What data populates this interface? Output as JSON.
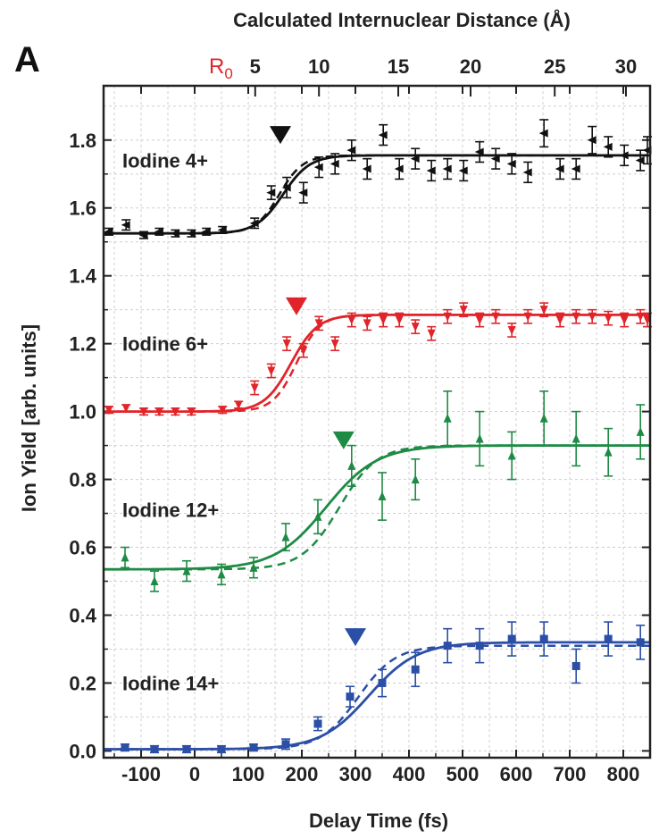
{
  "chart_data": {
    "type": "scatter",
    "panel_label": "A",
    "title": "",
    "xlabel": "Delay Time (fs)",
    "ylabel": "Ion Yield [arb. units]",
    "top_xlabel": "Calculated Internuclear Distance (Å)",
    "top_r0_label": "R",
    "top_r0_sub": "0",
    "xlim": [
      -170,
      850
    ],
    "ylim": [
      -0.02,
      1.96
    ],
    "x_ticks": [
      -100,
      0,
      100,
      200,
      300,
      400,
      500,
      600,
      700,
      800
    ],
    "x_tick_labels": [
      "-100",
      "0",
      "100",
      "200",
      "300",
      "400",
      "500",
      "600",
      "700",
      "800"
    ],
    "y_ticks": [
      0.0,
      0.2,
      0.4,
      0.6,
      0.8,
      1.0,
      1.2,
      1.4,
      1.6,
      1.8
    ],
    "y_tick_labels": [
      "0.0",
      "0.2",
      "0.4",
      "0.6",
      "0.8",
      "1.0",
      "1.2",
      "1.4",
      "1.6",
      "1.8"
    ],
    "top_ticks": [
      {
        "label": "5",
        "x": 113
      },
      {
        "label": "10",
        "x": 232
      },
      {
        "label": "15",
        "x": 380
      },
      {
        "label": "20",
        "x": 515
      },
      {
        "label": "25",
        "x": 672
      },
      {
        "label": "30",
        "x": 805
      }
    ],
    "grid": true,
    "series": [
      {
        "name": "Iodine 4+",
        "color": "#111111",
        "marker": "triangle-left",
        "fit": {
          "low": 1.525,
          "high": 1.755,
          "t0": 165,
          "w": 25
        },
        "fit_dashed": {
          "low": 1.525,
          "high": 1.755,
          "t0": 158,
          "w": 22
        },
        "arrow_x": 160,
        "arrow_y": 1.815,
        "label_x": -135,
        "label_y": 1.74,
        "points": [
          {
            "x": -160,
            "y": 1.53,
            "e": 0.01
          },
          {
            "x": -128,
            "y": 1.55,
            "e": 0.015
          },
          {
            "x": -95,
            "y": 1.52,
            "e": 0.01
          },
          {
            "x": -66,
            "y": 1.53,
            "e": 0.01
          },
          {
            "x": -36,
            "y": 1.525,
            "e": 0.01
          },
          {
            "x": -6,
            "y": 1.525,
            "e": 0.01
          },
          {
            "x": 22,
            "y": 1.53,
            "e": 0.01
          },
          {
            "x": 52,
            "y": 1.535,
            "e": 0.01
          },
          {
            "x": 112,
            "y": 1.555,
            "e": 0.015
          },
          {
            "x": 143,
            "y": 1.645,
            "e": 0.02
          },
          {
            "x": 172,
            "y": 1.66,
            "e": 0.03
          },
          {
            "x": 203,
            "y": 1.645,
            "e": 0.03
          },
          {
            "x": 232,
            "y": 1.72,
            "e": 0.03
          },
          {
            "x": 262,
            "y": 1.73,
            "e": 0.03
          },
          {
            "x": 293,
            "y": 1.77,
            "e": 0.03
          },
          {
            "x": 322,
            "y": 1.715,
            "e": 0.03
          },
          {
            "x": 352,
            "y": 1.815,
            "e": 0.03
          },
          {
            "x": 382,
            "y": 1.715,
            "e": 0.03
          },
          {
            "x": 412,
            "y": 1.745,
            "e": 0.03
          },
          {
            "x": 442,
            "y": 1.71,
            "e": 0.03
          },
          {
            "x": 472,
            "y": 1.715,
            "e": 0.03
          },
          {
            "x": 502,
            "y": 1.71,
            "e": 0.03
          },
          {
            "x": 532,
            "y": 1.765,
            "e": 0.03
          },
          {
            "x": 562,
            "y": 1.745,
            "e": 0.03
          },
          {
            "x": 592,
            "y": 1.73,
            "e": 0.03
          },
          {
            "x": 622,
            "y": 1.705,
            "e": 0.03
          },
          {
            "x": 652,
            "y": 1.82,
            "e": 0.04
          },
          {
            "x": 682,
            "y": 1.715,
            "e": 0.03
          },
          {
            "x": 712,
            "y": 1.715,
            "e": 0.03
          },
          {
            "x": 742,
            "y": 1.8,
            "e": 0.04
          },
          {
            "x": 772,
            "y": 1.78,
            "e": 0.03
          },
          {
            "x": 802,
            "y": 1.755,
            "e": 0.03
          },
          {
            "x": 832,
            "y": 1.74,
            "e": 0.03
          },
          {
            "x": 845,
            "y": 1.77,
            "e": 0.04
          }
        ]
      },
      {
        "name": "Iodine 6+",
        "color": "#e0242a",
        "marker": "triangle-down",
        "fit": {
          "low": 1.0,
          "high": 1.285,
          "t0": 180,
          "w": 25
        },
        "fit_dashed": {
          "low": 1.0,
          "high": 1.285,
          "t0": 190,
          "w": 22
        },
        "arrow_x": 190,
        "arrow_y": 1.31,
        "label_x": -135,
        "label_y": 1.2,
        "points": [
          {
            "x": -160,
            "y": 1.005,
            "e": 0.01
          },
          {
            "x": -128,
            "y": 1.01,
            "e": 0.01
          },
          {
            "x": -95,
            "y": 1.0,
            "e": 0.01
          },
          {
            "x": -66,
            "y": 1.0,
            "e": 0.01
          },
          {
            "x": -36,
            "y": 1.0,
            "e": 0.01
          },
          {
            "x": -6,
            "y": 1.0,
            "e": 0.01
          },
          {
            "x": 52,
            "y": 1.005,
            "e": 0.01
          },
          {
            "x": 82,
            "y": 1.02,
            "e": 0.01
          },
          {
            "x": 112,
            "y": 1.07,
            "e": 0.02
          },
          {
            "x": 143,
            "y": 1.12,
            "e": 0.02
          },
          {
            "x": 172,
            "y": 1.2,
            "e": 0.02
          },
          {
            "x": 203,
            "y": 1.18,
            "e": 0.02
          },
          {
            "x": 232,
            "y": 1.26,
            "e": 0.02
          },
          {
            "x": 262,
            "y": 1.2,
            "e": 0.02
          },
          {
            "x": 293,
            "y": 1.27,
            "e": 0.02
          },
          {
            "x": 322,
            "y": 1.26,
            "e": 0.02
          },
          {
            "x": 352,
            "y": 1.27,
            "e": 0.02
          },
          {
            "x": 382,
            "y": 1.27,
            "e": 0.02
          },
          {
            "x": 412,
            "y": 1.25,
            "e": 0.02
          },
          {
            "x": 442,
            "y": 1.23,
            "e": 0.02
          },
          {
            "x": 472,
            "y": 1.28,
            "e": 0.02
          },
          {
            "x": 502,
            "y": 1.3,
            "e": 0.02
          },
          {
            "x": 532,
            "y": 1.27,
            "e": 0.02
          },
          {
            "x": 562,
            "y": 1.28,
            "e": 0.02
          },
          {
            "x": 592,
            "y": 1.24,
            "e": 0.02
          },
          {
            "x": 622,
            "y": 1.28,
            "e": 0.02
          },
          {
            "x": 652,
            "y": 1.3,
            "e": 0.02
          },
          {
            "x": 682,
            "y": 1.27,
            "e": 0.02
          },
          {
            "x": 712,
            "y": 1.28,
            "e": 0.02
          },
          {
            "x": 742,
            "y": 1.28,
            "e": 0.02
          },
          {
            "x": 772,
            "y": 1.275,
            "e": 0.02
          },
          {
            "x": 802,
            "y": 1.27,
            "e": 0.02
          },
          {
            "x": 832,
            "y": 1.28,
            "e": 0.02
          },
          {
            "x": 845,
            "y": 1.27,
            "e": 0.02
          }
        ]
      },
      {
        "name": "Iodine 12+",
        "color": "#1e8b44",
        "marker": "triangle-up",
        "fit": {
          "low": 0.535,
          "high": 0.9,
          "t0": 245,
          "w": 48
        },
        "fit_dashed": {
          "low": 0.535,
          "high": 0.9,
          "t0": 270,
          "w": 35
        },
        "arrow_x": 278,
        "arrow_y": 0.915,
        "label_x": -135,
        "label_y": 0.71,
        "points": [
          {
            "x": -130,
            "y": 0.57,
            "e": 0.03
          },
          {
            "x": -75,
            "y": 0.5,
            "e": 0.03
          },
          {
            "x": -15,
            "y": 0.53,
            "e": 0.03
          },
          {
            "x": 50,
            "y": 0.52,
            "e": 0.03
          },
          {
            "x": 110,
            "y": 0.54,
            "e": 0.03
          },
          {
            "x": 170,
            "y": 0.63,
            "e": 0.04
          },
          {
            "x": 230,
            "y": 0.69,
            "e": 0.05
          },
          {
            "x": 293,
            "y": 0.84,
            "e": 0.06
          },
          {
            "x": 350,
            "y": 0.75,
            "e": 0.07
          },
          {
            "x": 412,
            "y": 0.8,
            "e": 0.06
          },
          {
            "x": 472,
            "y": 0.98,
            "e": 0.08
          },
          {
            "x": 532,
            "y": 0.92,
            "e": 0.08
          },
          {
            "x": 592,
            "y": 0.87,
            "e": 0.07
          },
          {
            "x": 652,
            "y": 0.98,
            "e": 0.08
          },
          {
            "x": 712,
            "y": 0.92,
            "e": 0.08
          },
          {
            "x": 772,
            "y": 0.88,
            "e": 0.07
          },
          {
            "x": 832,
            "y": 0.94,
            "e": 0.08
          }
        ]
      },
      {
        "name": "Iodine 14+",
        "color": "#2b4ea6",
        "marker": "square",
        "fit": {
          "low": 0.005,
          "high": 0.32,
          "t0": 325,
          "w": 45
        },
        "fit_dashed": {
          "low": 0.005,
          "high": 0.31,
          "t0": 305,
          "w": 35
        },
        "arrow_x": 300,
        "arrow_y": 0.335,
        "label_x": -135,
        "label_y": 0.2,
        "points": [
          {
            "x": -130,
            "y": 0.01,
            "e": 0.01
          },
          {
            "x": -75,
            "y": 0.005,
            "e": 0.01
          },
          {
            "x": -15,
            "y": 0.005,
            "e": 0.01
          },
          {
            "x": 50,
            "y": 0.005,
            "e": 0.01
          },
          {
            "x": 110,
            "y": 0.01,
            "e": 0.01
          },
          {
            "x": 170,
            "y": 0.02,
            "e": 0.015
          },
          {
            "x": 230,
            "y": 0.08,
            "e": 0.02
          },
          {
            "x": 290,
            "y": 0.16,
            "e": 0.03
          },
          {
            "x": 350,
            "y": 0.2,
            "e": 0.04
          },
          {
            "x": 412,
            "y": 0.24,
            "e": 0.05
          },
          {
            "x": 472,
            "y": 0.31,
            "e": 0.05
          },
          {
            "x": 532,
            "y": 0.31,
            "e": 0.05
          },
          {
            "x": 592,
            "y": 0.33,
            "e": 0.05
          },
          {
            "x": 652,
            "y": 0.33,
            "e": 0.05
          },
          {
            "x": 712,
            "y": 0.25,
            "e": 0.05
          },
          {
            "x": 772,
            "y": 0.33,
            "e": 0.05
          },
          {
            "x": 832,
            "y": 0.32,
            "e": 0.05
          }
        ]
      }
    ]
  }
}
